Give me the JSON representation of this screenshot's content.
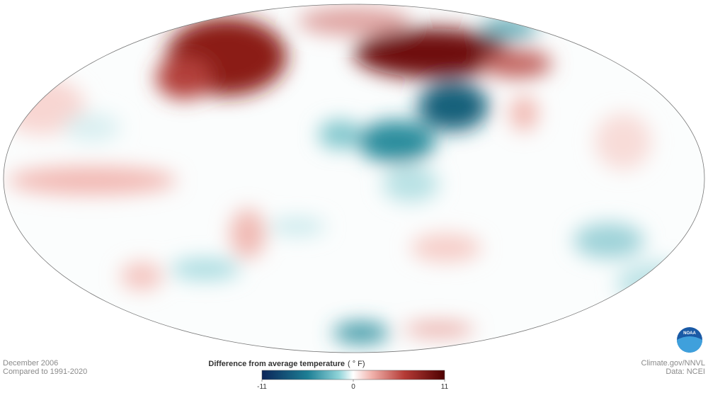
{
  "caption": {
    "date": "December 2006",
    "baseline": "Compared to 1991-2020"
  },
  "legend": {
    "title": "Difference from average temperature",
    "unit": "( ° F)",
    "ticks": [
      -11,
      0,
      11
    ]
  },
  "credits": {
    "source": "Climate.gov/NNVL",
    "data": "Data: NCEI"
  }
}
